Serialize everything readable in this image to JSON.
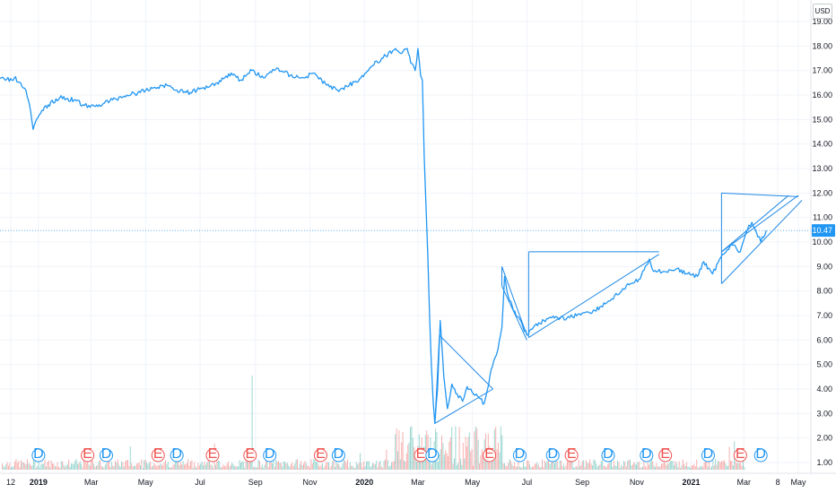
{
  "currency_label": "USD",
  "colors": {
    "line": "#2196f3",
    "drawing": "#1e88e5",
    "grid": "#f0f3fa",
    "vol_up": "#26a69a",
    "vol_down": "#ef5350",
    "dividend": "#2196f3",
    "earnings": "#ef5350",
    "price_tag_bg": "#2196f3"
  },
  "chart_data": {
    "type": "line",
    "title": "",
    "xlabel": "",
    "ylabel": "",
    "ylim": [
      0.6,
      19.3
    ],
    "grid": true,
    "y_ticks": [
      "1.00",
      "2.00",
      "3.00",
      "4.00",
      "5.00",
      "6.00",
      "7.00",
      "8.00",
      "9.00",
      "10.00",
      "11.00",
      "12.00",
      "13.00",
      "14.00",
      "15.00",
      "16.00",
      "17.00",
      "18.00",
      "19.00"
    ],
    "x_ticks": [
      {
        "label": "12",
        "x": "2018-12"
      },
      {
        "label": "2019",
        "x": "2019-01",
        "bold": true
      },
      {
        "label": "Mar",
        "x": "2019-03"
      },
      {
        "label": "May",
        "x": "2019-05"
      },
      {
        "label": "Jul",
        "x": "2019-07"
      },
      {
        "label": "Sep",
        "x": "2019-09"
      },
      {
        "label": "Nov",
        "x": "2019-11"
      },
      {
        "label": "2020",
        "x": "2020-01",
        "bold": true
      },
      {
        "label": "Mar",
        "x": "2020-03"
      },
      {
        "label": "May",
        "x": "2020-05"
      },
      {
        "label": "Jul",
        "x": "2020-07"
      },
      {
        "label": "Sep",
        "x": "2020-09"
      },
      {
        "label": "Nov",
        "x": "2020-11"
      },
      {
        "label": "2021",
        "x": "2021-01",
        "bold": true
      },
      {
        "label": "Mar",
        "x": "2021-03"
      },
      {
        "label": "8",
        "x": "2021-04-08"
      },
      {
        "label": "May",
        "x": "2021-05"
      }
    ],
    "last_price": "10.47",
    "series": [
      {
        "points": [
          [
            "2018-11-15",
            16.8
          ],
          [
            "2018-11-25",
            16.6
          ],
          [
            "2018-12-05",
            16.7
          ],
          [
            "2018-12-12",
            16.5
          ],
          [
            "2018-12-18",
            16.2
          ],
          [
            "2018-12-22",
            15.6
          ],
          [
            "2018-12-26",
            14.6
          ],
          [
            "2019-01-02",
            15.2
          ],
          [
            "2019-01-12",
            15.6
          ],
          [
            "2019-01-25",
            15.9
          ],
          [
            "2019-02-10",
            15.8
          ],
          [
            "2019-02-20",
            15.6
          ],
          [
            "2019-02-28",
            15.5
          ],
          [
            "2019-03-10",
            15.6
          ],
          [
            "2019-03-25",
            15.8
          ],
          [
            "2019-04-10",
            16.0
          ],
          [
            "2019-04-25",
            16.1
          ],
          [
            "2019-05-10",
            16.3
          ],
          [
            "2019-05-25",
            16.4
          ],
          [
            "2019-06-05",
            16.2
          ],
          [
            "2019-06-20",
            16.1
          ],
          [
            "2019-07-05",
            16.3
          ],
          [
            "2019-07-20",
            16.5
          ],
          [
            "2019-08-05",
            16.9
          ],
          [
            "2019-08-15",
            16.6
          ],
          [
            "2019-08-28",
            17.0
          ],
          [
            "2019-09-10",
            16.7
          ],
          [
            "2019-09-25",
            17.1
          ],
          [
            "2019-10-10",
            16.8
          ],
          [
            "2019-10-25",
            16.7
          ],
          [
            "2019-11-05",
            16.9
          ],
          [
            "2019-11-20",
            16.4
          ],
          [
            "2019-12-02",
            16.2
          ],
          [
            "2019-12-15",
            16.4
          ],
          [
            "2019-12-28",
            16.7
          ],
          [
            "2020-01-10",
            17.2
          ],
          [
            "2020-01-25",
            17.6
          ],
          [
            "2020-02-05",
            17.9
          ],
          [
            "2020-02-12",
            17.7
          ],
          [
            "2020-02-18",
            17.9
          ],
          [
            "2020-02-22",
            17.3
          ],
          [
            "2020-02-27",
            17.0
          ],
          [
            "2020-03-01",
            17.9
          ],
          [
            "2020-03-04",
            16.8
          ],
          [
            "2020-03-06",
            16.6
          ],
          [
            "2020-03-08",
            13.5
          ],
          [
            "2020-03-10",
            11.5
          ],
          [
            "2020-03-12",
            9.5
          ],
          [
            "2020-03-14",
            7.0
          ],
          [
            "2020-03-16",
            5.0
          ],
          [
            "2020-03-18",
            3.5
          ],
          [
            "2020-03-20",
            2.6
          ],
          [
            "2020-03-23",
            4.0
          ],
          [
            "2020-03-26",
            6.8
          ],
          [
            "2020-03-30",
            4.5
          ],
          [
            "2020-04-03",
            3.2
          ],
          [
            "2020-04-08",
            4.2
          ],
          [
            "2020-04-14",
            3.8
          ],
          [
            "2020-04-20",
            3.5
          ],
          [
            "2020-04-25",
            4.1
          ],
          [
            "2020-05-02",
            3.8
          ],
          [
            "2020-05-10",
            3.6
          ],
          [
            "2020-05-14",
            3.4
          ],
          [
            "2020-05-18",
            4.0
          ],
          [
            "2020-05-22",
            4.8
          ],
          [
            "2020-05-28",
            5.4
          ],
          [
            "2020-06-03",
            6.5
          ],
          [
            "2020-06-06",
            8.6
          ],
          [
            "2020-06-10",
            7.8
          ],
          [
            "2020-06-16",
            7.2
          ],
          [
            "2020-06-24",
            6.8
          ],
          [
            "2020-07-01",
            6.2
          ],
          [
            "2020-07-10",
            6.6
          ],
          [
            "2020-07-20",
            6.8
          ],
          [
            "2020-08-01",
            6.9
          ],
          [
            "2020-08-15",
            6.9
          ],
          [
            "2020-09-01",
            7.1
          ],
          [
            "2020-09-15",
            7.2
          ],
          [
            "2020-10-01",
            7.6
          ],
          [
            "2020-10-15",
            8.0
          ],
          [
            "2020-10-25",
            8.3
          ],
          [
            "2020-11-05",
            8.5
          ],
          [
            "2020-11-15",
            9.3
          ],
          [
            "2020-11-20",
            8.8
          ],
          [
            "2020-12-01",
            8.8
          ],
          [
            "2020-12-15",
            8.9
          ],
          [
            "2020-12-28",
            8.7
          ],
          [
            "2021-01-08",
            8.6
          ],
          [
            "2021-01-15",
            9.2
          ],
          [
            "2021-01-25",
            8.7
          ],
          [
            "2021-02-05",
            9.5
          ],
          [
            "2021-02-15",
            9.9
          ],
          [
            "2021-02-25",
            9.6
          ],
          [
            "2021-03-05",
            10.5
          ],
          [
            "2021-03-10",
            10.8
          ],
          [
            "2021-03-15",
            10.4
          ],
          [
            "2021-03-20",
            10.0
          ],
          [
            "2021-03-26",
            10.47
          ]
        ]
      }
    ],
    "drawings": [
      {
        "type": "ascending-triangle",
        "upper": [
          [
            "2020-07-03",
            9.6
          ],
          [
            "2020-11-26",
            9.6
          ]
        ],
        "lower": [
          [
            "2020-07-03",
            6.1
          ],
          [
            "2020-11-26",
            9.5
          ]
        ]
      },
      {
        "type": "wedge",
        "upper": [
          [
            "2020-03-25",
            6.2
          ],
          [
            "2020-05-24",
            4.0
          ]
        ],
        "lower": [
          [
            "2020-03-20",
            2.6
          ],
          [
            "2020-05-24",
            4.0
          ]
        ]
      },
      {
        "type": "flag",
        "upper": [
          [
            "2020-06-03",
            9.0
          ],
          [
            "2020-07-01",
            6.2
          ]
        ],
        "lower": [
          [
            "2020-06-03",
            8.2
          ],
          [
            "2020-07-01",
            6.0
          ]
        ]
      },
      {
        "type": "triangle",
        "upper": [
          [
            "2021-02-04",
            12.0
          ],
          [
            "2021-05-01",
            11.85
          ]
        ],
        "lower": [
          [
            "2021-02-04",
            9.6
          ],
          [
            "2021-05-01",
            11.9
          ]
        ]
      },
      {
        "type": "channel",
        "upper": [
          [
            "2021-02-04",
            9.6
          ],
          [
            "2021-04-20",
            11.9
          ]
        ],
        "lower": [
          [
            "2021-02-04",
            8.3
          ],
          [
            "2021-05-05",
            11.7
          ]
        ]
      }
    ],
    "events": [
      {
        "type": "D",
        "x": "2019-01-01"
      },
      {
        "type": "E",
        "x": "2019-02-25"
      },
      {
        "type": "D",
        "x": "2019-03-18"
      },
      {
        "type": "E",
        "x": "2019-05-15"
      },
      {
        "type": "D",
        "x": "2019-06-05"
      },
      {
        "type": "E",
        "x": "2019-07-15"
      },
      {
        "type": "E",
        "x": "2019-08-26"
      },
      {
        "type": "D",
        "x": "2019-09-17"
      },
      {
        "type": "E",
        "x": "2019-11-13"
      },
      {
        "type": "D",
        "x": "2019-12-03"
      },
      {
        "type": "E",
        "x": "2020-03-04"
      },
      {
        "type": "D",
        "x": "2020-03-17"
      },
      {
        "type": "E",
        "x": "2020-05-20"
      },
      {
        "type": "D",
        "x": "2020-06-23"
      },
      {
        "type": "D",
        "x": "2020-07-30"
      },
      {
        "type": "E",
        "x": "2020-08-20"
      },
      {
        "type": "D",
        "x": "2020-09-30"
      },
      {
        "type": "D",
        "x": "2020-11-12"
      },
      {
        "type": "E",
        "x": "2020-12-03"
      },
      {
        "type": "D",
        "x": "2021-01-20"
      },
      {
        "type": "E",
        "x": "2021-02-25"
      },
      {
        "type": "D",
        "x": "2021-03-20"
      }
    ]
  }
}
